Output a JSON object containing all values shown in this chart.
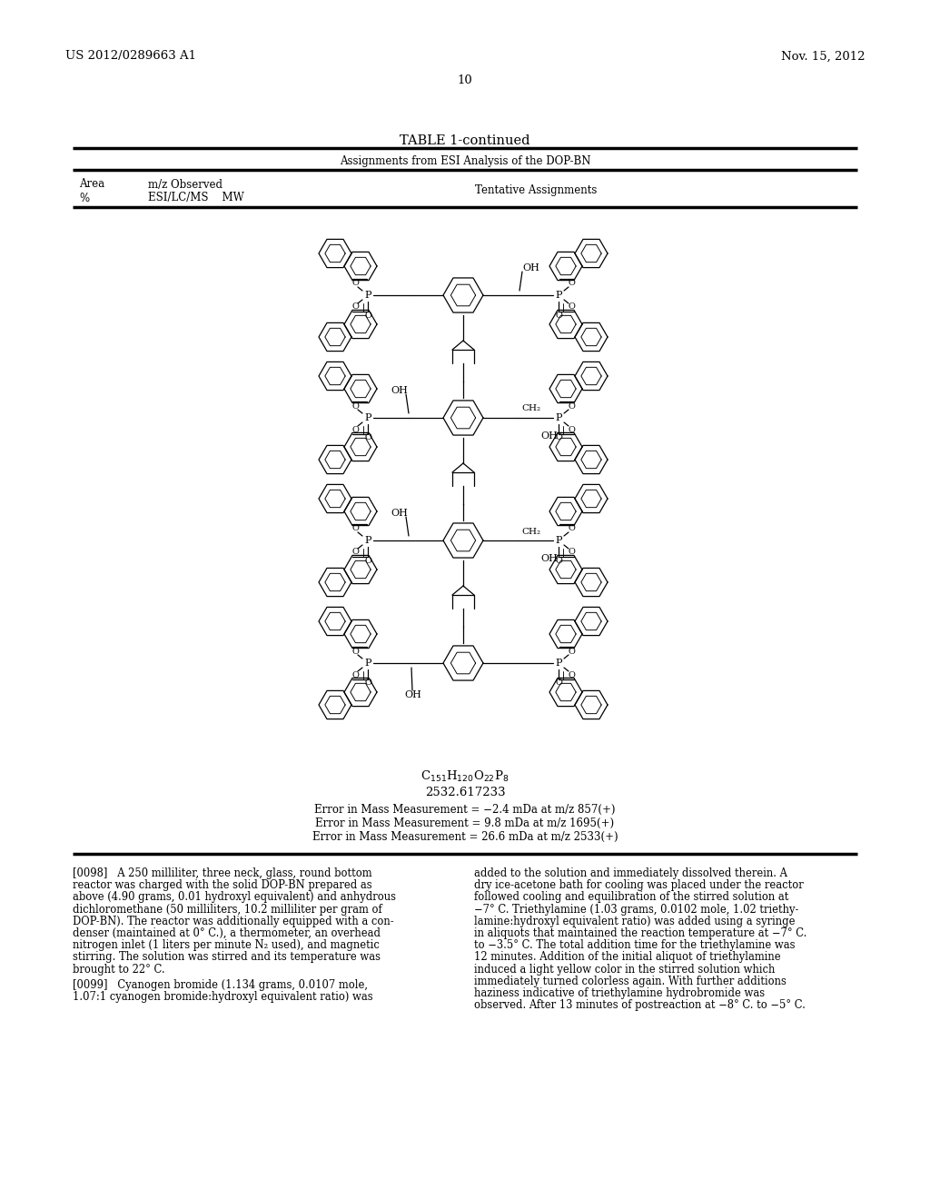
{
  "page_number": "10",
  "patent_number": "US 2012/0289663 A1",
  "patent_date": "Nov. 15, 2012",
  "table_title": "TABLE 1-continued",
  "table_subtitle": "Assignments from ESI Analysis of the DOP-BN",
  "col1_header1": "Area",
  "col1_header2": "%",
  "col2_header1": "m/z Observed",
  "col2_header2": "ESI/LC/MS    MW",
  "col3_header": "Tentative Assignments",
  "formula_mw": "2532.617233",
  "error1": "Error in Mass Measurement = −2.4 mDa at m/z 857(+)",
  "error2": "Error in Mass Measurement = 9.8 mDa at m/z 1695(+)",
  "error3": "Error in Mass Measurement = 26.6 mDa at m/z 2533(+)",
  "para0098_left": [
    "[0098]   A 250 milliliter, three neck, glass, round bottom",
    "reactor was charged with the solid DOP-BN prepared as",
    "above (4.90 grams, 0.01 hydroxyl equivalent) and anhydrous",
    "dichloromethane (50 milliliters, 10.2 milliliter per gram of",
    "DOP-BN). The reactor was additionally equipped with a con-",
    "denser (maintained at 0° C.), a thermometer, an overhead",
    "nitrogen inlet (1 liters per minute N₂ used), and magnetic",
    "stirring. The solution was stirred and its temperature was",
    "brought to 22° C."
  ],
  "para0099_left": [
    "[0099]   Cyanogen bromide (1.134 grams, 0.0107 mole,",
    "1.07:1 cyanogen bromide:hydroxyl equivalent ratio) was"
  ],
  "para0098_right": [
    "added to the solution and immediately dissolved therein. A",
    "dry ice-acetone bath for cooling was placed under the reactor",
    "followed cooling and equilibration of the stirred solution at",
    "−7° C. Triethylamine (1.03 grams, 0.0102 mole, 1.02 triethy-",
    "lamine:hydroxyl equivalent ratio) was added using a syringe",
    "in aliquots that maintained the reaction temperature at −7° C.",
    "to −3.5° C. The total addition time for the triethylamine was",
    "12 minutes. Addition of the initial aliquot of triethylamine",
    "induced a light yellow color in the stirred solution which",
    "immediately turned colorless again. With further additions",
    "haziness indicative of triethylamine hydrobromide was",
    "observed. After 13 minutes of postreaction at −8° C. to −5° C."
  ]
}
